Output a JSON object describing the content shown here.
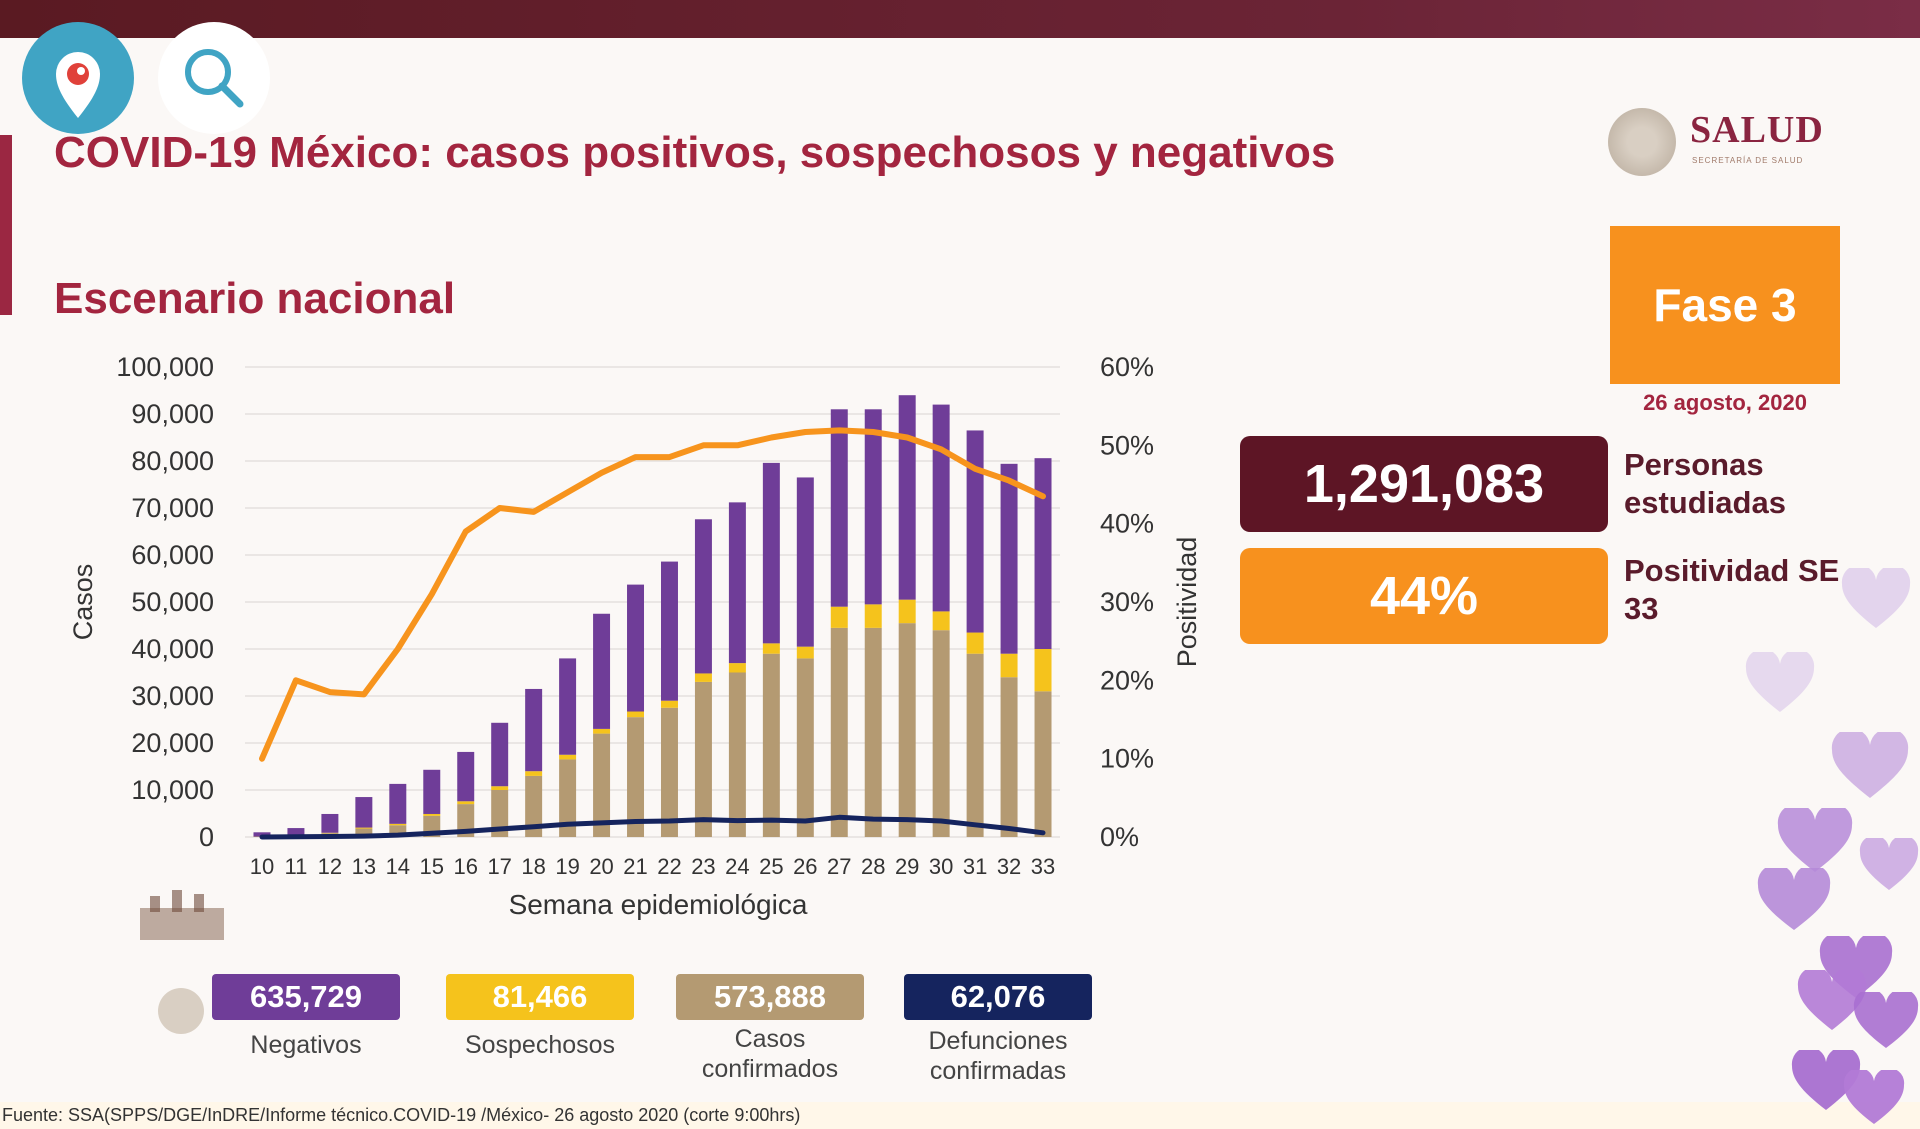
{
  "header": {
    "title": "COVID-19 México: casos positivos, sospechosos y negativos",
    "subtitle": "Escenario nacional"
  },
  "logo": {
    "text": "SALUD",
    "subtext": "SECRETARÍA DE SALUD"
  },
  "phase": {
    "label": "Fase 3",
    "date": "26 agosto, 2020"
  },
  "stats": {
    "people_value": "1,291,083",
    "people_label": "Personas estudiadas",
    "positivity_value": "44%",
    "positivity_label": "Positividad SE 33"
  },
  "legend": {
    "negativos_value": "635,729",
    "negativos_label": "Negativos",
    "sospechosos_value": "81,466",
    "sospechosos_label": "Sospechosos",
    "confirmados_value": "573,888",
    "confirmados_label": "Casos confirmados",
    "defunciones_value": "62,076",
    "defunciones_label": "Defunciones confirmadas"
  },
  "source": "Fuente: SSA(SPPS/DGE/InDRE/Informe técnico.COVID-19 /México- 26 agosto 2020 (corte 9:00hrs)",
  "colors": {
    "negativos": "#6f3d98",
    "sospechosos": "#f5c31c",
    "confirmados": "#b49a72",
    "defunciones": "#15245e",
    "positividad": "#f7941d",
    "title": "#a3253f"
  },
  "icons": [
    "periscope-icon",
    "search-icon",
    "salud-seal-icon",
    "heart-icon"
  ],
  "chart_data": {
    "type": "bar",
    "stacked": true,
    "xlabel": "Semana epidemiológica",
    "ylabel": "Casos",
    "y2label": "Positividad",
    "ylim": [
      0,
      100000
    ],
    "y2lim": [
      0,
      60
    ],
    "yticks": [
      "0",
      "10,000",
      "20,000",
      "30,000",
      "40,000",
      "50,000",
      "60,000",
      "70,000",
      "80,000",
      "90,000",
      "100,000"
    ],
    "y2ticks": [
      "0%",
      "10%",
      "20%",
      "30%",
      "40%",
      "50%",
      "60%"
    ],
    "categories": [
      "10",
      "11",
      "12",
      "13",
      "14",
      "15",
      "16",
      "17",
      "18",
      "19",
      "20",
      "21",
      "22",
      "23",
      "24",
      "25",
      "26",
      "27",
      "28",
      "29",
      "30",
      "31",
      "32",
      "33"
    ],
    "series": [
      {
        "name": "Casos confirmados",
        "values": [
          100,
          300,
          800,
          1800,
          2500,
          4500,
          7000,
          10000,
          13000,
          16500,
          22000,
          25500,
          27500,
          33000,
          35000,
          39000,
          38000,
          44500,
          44500,
          45500,
          44000,
          39000,
          34000,
          31000
        ]
      },
      {
        "name": "Sospechosos",
        "values": [
          0,
          0,
          100,
          200,
          300,
          400,
          600,
          800,
          1000,
          1000,
          1000,
          1200,
          1500,
          1800,
          2000,
          2200,
          2500,
          4500,
          5000,
          5000,
          4000,
          4500,
          5000,
          9000
        ]
      },
      {
        "name": "Negativos",
        "values": [
          900,
          1600,
          4000,
          6500,
          8500,
          9400,
          10500,
          13500,
          17500,
          20500,
          24500,
          27000,
          29600,
          32800,
          34200,
          38400,
          36000,
          42000,
          41500,
          43500,
          44000,
          43000,
          40400,
          40600
        ]
      },
      {
        "name": "Defunciones",
        "type": "line",
        "values": [
          0,
          50,
          100,
          200,
          400,
          800,
          1200,
          1700,
          2200,
          2700,
          3000,
          3300,
          3400,
          3700,
          3500,
          3600,
          3400,
          4200,
          3800,
          3700,
          3400,
          2600,
          1800,
          900
        ]
      },
      {
        "name": "Positividad",
        "type": "line",
        "axis": "y2",
        "values": [
          10,
          20,
          18.5,
          18.2,
          24,
          31,
          39,
          42,
          41.5,
          44,
          46.5,
          48.5,
          48.5,
          50,
          50,
          51,
          51.7,
          51.9,
          51.7,
          51,
          49.5,
          47,
          45.5,
          43.5
        ]
      }
    ]
  }
}
